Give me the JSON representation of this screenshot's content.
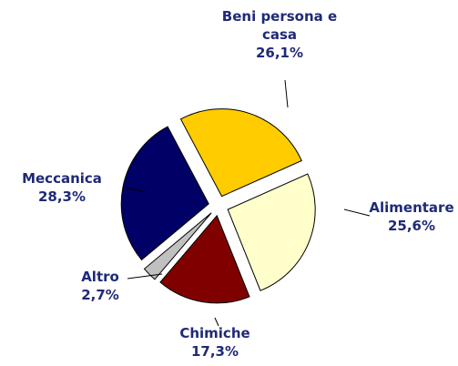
{
  "chart_data": {
    "type": "pie",
    "categories": [
      "Beni persona e casa",
      "Alimentare",
      "Chimiche",
      "Altro",
      "Meccanica"
    ],
    "values": [
      26.1,
      25.6,
      17.3,
      2.7,
      28.3
    ],
    "value_labels": [
      "26,1%",
      "25,6%",
      "17,3%",
      "2,7%",
      "28,3%"
    ],
    "colors": [
      "#ffcc00",
      "#ffffcc",
      "#800000",
      "#c0c0c0",
      "#000066"
    ]
  }
}
